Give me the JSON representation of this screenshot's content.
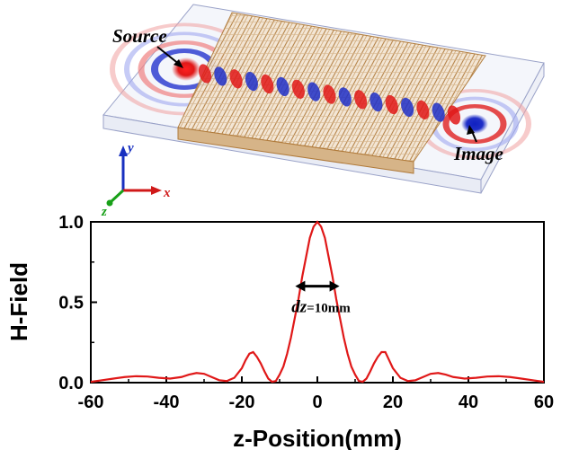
{
  "illustration": {
    "source_label": "Source",
    "image_label": "Image",
    "axis_x": "x",
    "axis_y": "y",
    "axis_z": "z",
    "colors": {
      "positive": "#e01818",
      "negative": "#1f2fc8",
      "lens": "#b07a3a",
      "slab_edge": "#9aa2c8"
    }
  },
  "chart_data": {
    "type": "line",
    "xlabel": "z-Position(mm)",
    "ylabel": "H-Field",
    "xlim": [
      -60,
      60
    ],
    "ylim": [
      0,
      1.0
    ],
    "xticks": [
      -60,
      -40,
      -20,
      0,
      20,
      40,
      60
    ],
    "yticks": [
      "0.0",
      "0.5",
      "1.0"
    ],
    "grid": false,
    "annotation": {
      "text_italic": "dz",
      "text_rest": "=10mm",
      "from": -3,
      "to": 3,
      "y": 0.6
    },
    "series": [
      {
        "color": "#e01818",
        "x": [
          -60,
          -57,
          -54,
          -51,
          -48,
          -45,
          -42,
          -39,
          -36,
          -34,
          -32,
          -30,
          -28,
          -26,
          -24,
          -22,
          -20,
          -19,
          -18,
          -17,
          -16,
          -15,
          -14,
          -13,
          -12,
          -11,
          -10,
          -9,
          -8,
          -7,
          -6,
          -5,
          -4,
          -3,
          -2,
          -1,
          0,
          1,
          2,
          3,
          4,
          5,
          6,
          7,
          8,
          9,
          10,
          11,
          12,
          13,
          14,
          15,
          16,
          17,
          18,
          19,
          20,
          22,
          24,
          26,
          28,
          30,
          32,
          34,
          36,
          39,
          42,
          45,
          48,
          51,
          54,
          57,
          60
        ],
        "y": [
          0.005,
          0.015,
          0.025,
          0.035,
          0.04,
          0.038,
          0.03,
          0.025,
          0.035,
          0.05,
          0.06,
          0.055,
          0.035,
          0.015,
          0.01,
          0.03,
          0.09,
          0.14,
          0.18,
          0.19,
          0.16,
          0.12,
          0.07,
          0.025,
          0.005,
          0.01,
          0.05,
          0.1,
          0.18,
          0.28,
          0.4,
          0.52,
          0.66,
          0.78,
          0.9,
          0.97,
          1.0,
          0.97,
          0.9,
          0.78,
          0.66,
          0.52,
          0.4,
          0.28,
          0.18,
          0.1,
          0.05,
          0.01,
          0.005,
          0.025,
          0.07,
          0.12,
          0.16,
          0.19,
          0.19,
          0.14,
          0.09,
          0.03,
          0.01,
          0.015,
          0.035,
          0.055,
          0.06,
          0.05,
          0.035,
          0.025,
          0.03,
          0.038,
          0.04,
          0.035,
          0.025,
          0.015,
          0.005
        ]
      }
    ]
  }
}
